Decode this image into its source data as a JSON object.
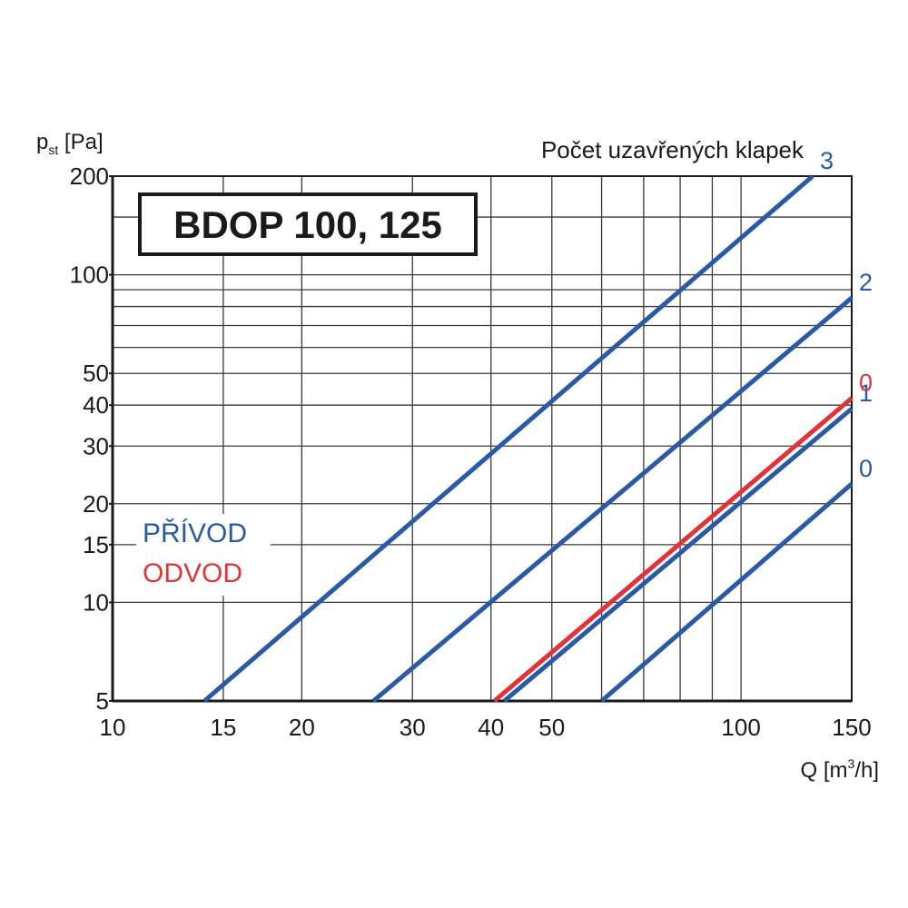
{
  "chart_data": {
    "type": "line",
    "title": "BDOP 100, 125",
    "header": "Počet uzavřených klapek",
    "xaxis": {
      "label": "Q [m³/h]",
      "label_parts": [
        "Q [m",
        "3",
        "/h]"
      ],
      "scale": "log",
      "range": [
        10,
        150
      ],
      "ticks": [
        10,
        15,
        20,
        30,
        40,
        50,
        100,
        150
      ],
      "tick_labels": [
        "10",
        "15",
        "20",
        "30",
        "40",
        "50",
        "100",
        "150"
      ],
      "grid": [
        10,
        15,
        20,
        30,
        40,
        50,
        60,
        70,
        80,
        90,
        100,
        150
      ]
    },
    "yaxis": {
      "label": "p st [Pa]",
      "label_parts": [
        "p",
        "st",
        " [Pa]"
      ],
      "scale": "log",
      "range": [
        5,
        200
      ],
      "ticks": [
        5,
        10,
        15,
        20,
        30,
        40,
        50,
        100,
        200
      ],
      "tick_labels": [
        "5",
        "10",
        "15",
        "20",
        "30",
        "40",
        "50",
        "100",
        "200"
      ],
      "grid": [
        5,
        10,
        15,
        20,
        30,
        40,
        50,
        60,
        70,
        80,
        90,
        100,
        150,
        200
      ]
    },
    "legend": [
      {
        "label": "PŘÍVOD",
        "color": "#2a5aa6"
      },
      {
        "label": "ODVOD",
        "color": "#e0343a"
      }
    ],
    "series": [
      {
        "label": "3",
        "group": "PŘÍVOD",
        "color": "#2a5aa6",
        "points": [
          [
            14,
            5
          ],
          [
            130,
            200
          ]
        ]
      },
      {
        "label": "2",
        "group": "PŘÍVOD",
        "color": "#2a5aa6",
        "points": [
          [
            26,
            5
          ],
          [
            150,
            85
          ]
        ]
      },
      {
        "label": "1",
        "group": "PŘÍVOD",
        "color": "#2a5aa6",
        "points": [
          [
            42,
            5
          ],
          [
            150,
            39
          ]
        ]
      },
      {
        "label": "0",
        "group": "PŘÍVOD",
        "color": "#2a5aa6",
        "points": [
          [
            60,
            5
          ],
          [
            150,
            23
          ]
        ]
      },
      {
        "label": "0",
        "group": "ODVOD",
        "color": "#e0343a",
        "points": [
          [
            40.5,
            5
          ],
          [
            150,
            42
          ]
        ]
      }
    ]
  }
}
